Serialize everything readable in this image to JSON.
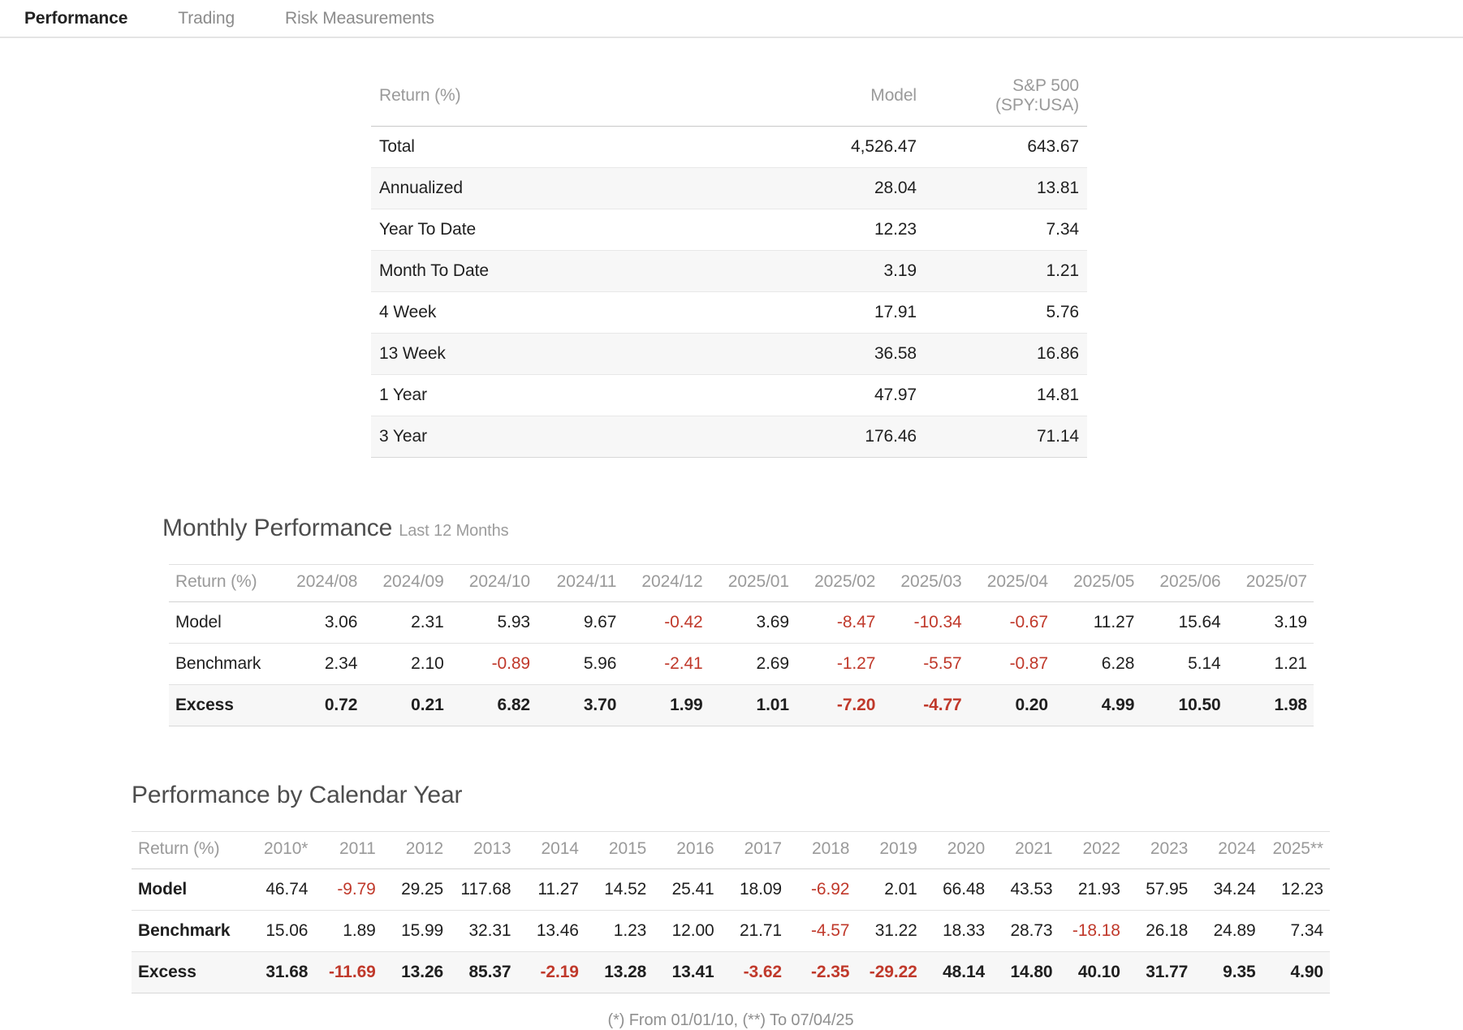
{
  "tabs": [
    {
      "label": "Performance",
      "active": true
    },
    {
      "label": "Trading",
      "active": false
    },
    {
      "label": "Risk Measurements",
      "active": false
    }
  ],
  "summary_table": {
    "header_label": "Return (%)",
    "columns": [
      "Model",
      "S&P 500 (SPY:USA)"
    ],
    "rows": [
      {
        "label": "Total",
        "values": [
          "4,526.47",
          "643.67"
        ]
      },
      {
        "label": "Annualized",
        "values": [
          "28.04",
          "13.81"
        ]
      },
      {
        "label": "Year To Date",
        "values": [
          "12.23",
          "7.34"
        ]
      },
      {
        "label": "Month To Date",
        "values": [
          "3.19",
          "1.21"
        ]
      },
      {
        "label": "4 Week",
        "values": [
          "17.91",
          "5.76"
        ]
      },
      {
        "label": "13 Week",
        "values": [
          "36.58",
          "16.86"
        ]
      },
      {
        "label": "1 Year",
        "values": [
          "47.97",
          "14.81"
        ]
      },
      {
        "label": "3 Year",
        "values": [
          "176.46",
          "71.14"
        ]
      }
    ]
  },
  "monthly_performance": {
    "title": "Monthly Performance",
    "subtitle": "Last 12 Months",
    "header_label": "Return (%)",
    "columns": [
      "2024/08",
      "2024/09",
      "2024/10",
      "2024/11",
      "2024/12",
      "2025/01",
      "2025/02",
      "2025/03",
      "2025/04",
      "2025/05",
      "2025/06",
      "2025/07"
    ],
    "rows": [
      {
        "label": "Model",
        "emphasis": false,
        "values": [
          "3.06",
          "2.31",
          "5.93",
          "9.67",
          "-0.42",
          "3.69",
          "-8.47",
          "-10.34",
          "-0.67",
          "11.27",
          "15.64",
          "3.19"
        ]
      },
      {
        "label": "Benchmark",
        "emphasis": false,
        "values": [
          "2.34",
          "2.10",
          "-0.89",
          "5.96",
          "-2.41",
          "2.69",
          "-1.27",
          "-5.57",
          "-0.87",
          "6.28",
          "5.14",
          "1.21"
        ]
      },
      {
        "label": "Excess",
        "emphasis": true,
        "values": [
          "0.72",
          "0.21",
          "6.82",
          "3.70",
          "1.99",
          "1.01",
          "-7.20",
          "-4.77",
          "0.20",
          "4.99",
          "10.50",
          "1.98"
        ]
      }
    ]
  },
  "calendar_performance": {
    "title": "Performance by Calendar Year",
    "header_label": "Return (%)",
    "columns": [
      "2010*",
      "2011",
      "2012",
      "2013",
      "2014",
      "2015",
      "2016",
      "2017",
      "2018",
      "2019",
      "2020",
      "2021",
      "2022",
      "2023",
      "2024",
      "2025**"
    ],
    "rows": [
      {
        "label": "Model",
        "emphasis": false,
        "values": [
          "46.74",
          "-9.79",
          "29.25",
          "117.68",
          "11.27",
          "14.52",
          "25.41",
          "18.09",
          "-6.92",
          "2.01",
          "66.48",
          "43.53",
          "21.93",
          "57.95",
          "34.24",
          "12.23"
        ]
      },
      {
        "label": "Benchmark",
        "emphasis": false,
        "values": [
          "15.06",
          "1.89",
          "15.99",
          "32.31",
          "13.46",
          "1.23",
          "12.00",
          "21.71",
          "-4.57",
          "31.22",
          "18.33",
          "28.73",
          "-18.18",
          "26.18",
          "24.89",
          "7.34"
        ]
      },
      {
        "label": "Excess",
        "emphasis": true,
        "values": [
          "31.68",
          "-11.69",
          "13.26",
          "85.37",
          "-2.19",
          "13.28",
          "13.41",
          "-3.62",
          "-2.35",
          "-29.22",
          "48.14",
          "14.80",
          "40.10",
          "31.77",
          "9.35",
          "4.90"
        ]
      }
    ]
  },
  "footnote": "(*) From 01/01/10, (**) To 07/04/25",
  "colors": {
    "negative": "#c0392b",
    "active_tab": "#222222",
    "muted_text": "#9a9a9a",
    "stripe": "#f7f7f7"
  }
}
